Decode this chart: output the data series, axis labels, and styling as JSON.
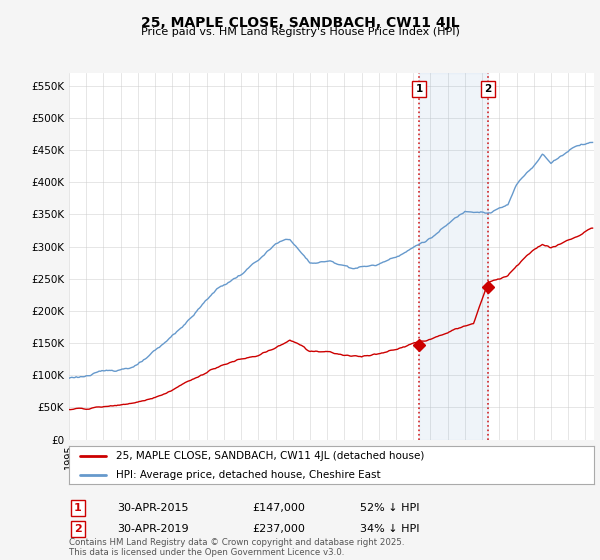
{
  "title": "25, MAPLE CLOSE, SANDBACH, CW11 4JL",
  "subtitle": "Price paid vs. HM Land Registry's House Price Index (HPI)",
  "hpi_color": "#6699cc",
  "price_color": "#cc0000",
  "background_color": "#f5f5f5",
  "plot_bg_color": "#ffffff",
  "ylim": [
    0,
    570000
  ],
  "yticks": [
    0,
    50000,
    100000,
    150000,
    200000,
    250000,
    300000,
    350000,
    400000,
    450000,
    500000,
    550000
  ],
  "xlim_start": 1995.0,
  "xlim_end": 2025.5,
  "sale1_x": 2015.33,
  "sale1_y": 147000,
  "sale2_x": 2019.33,
  "sale2_y": 237000,
  "sale1_label": "1",
  "sale2_label": "2",
  "sale1_date": "30-APR-2015",
  "sale1_price": "£147,000",
  "sale1_note": "52% ↓ HPI",
  "sale2_date": "30-APR-2019",
  "sale2_price": "£237,000",
  "sale2_note": "34% ↓ HPI",
  "legend_line1": "25, MAPLE CLOSE, SANDBACH, CW11 4JL (detached house)",
  "legend_line2": "HPI: Average price, detached house, Cheshire East",
  "footer": "Contains HM Land Registry data © Crown copyright and database right 2025.\nThis data is licensed under the Open Government Licence v3.0.",
  "grid_color": "#cccccc"
}
